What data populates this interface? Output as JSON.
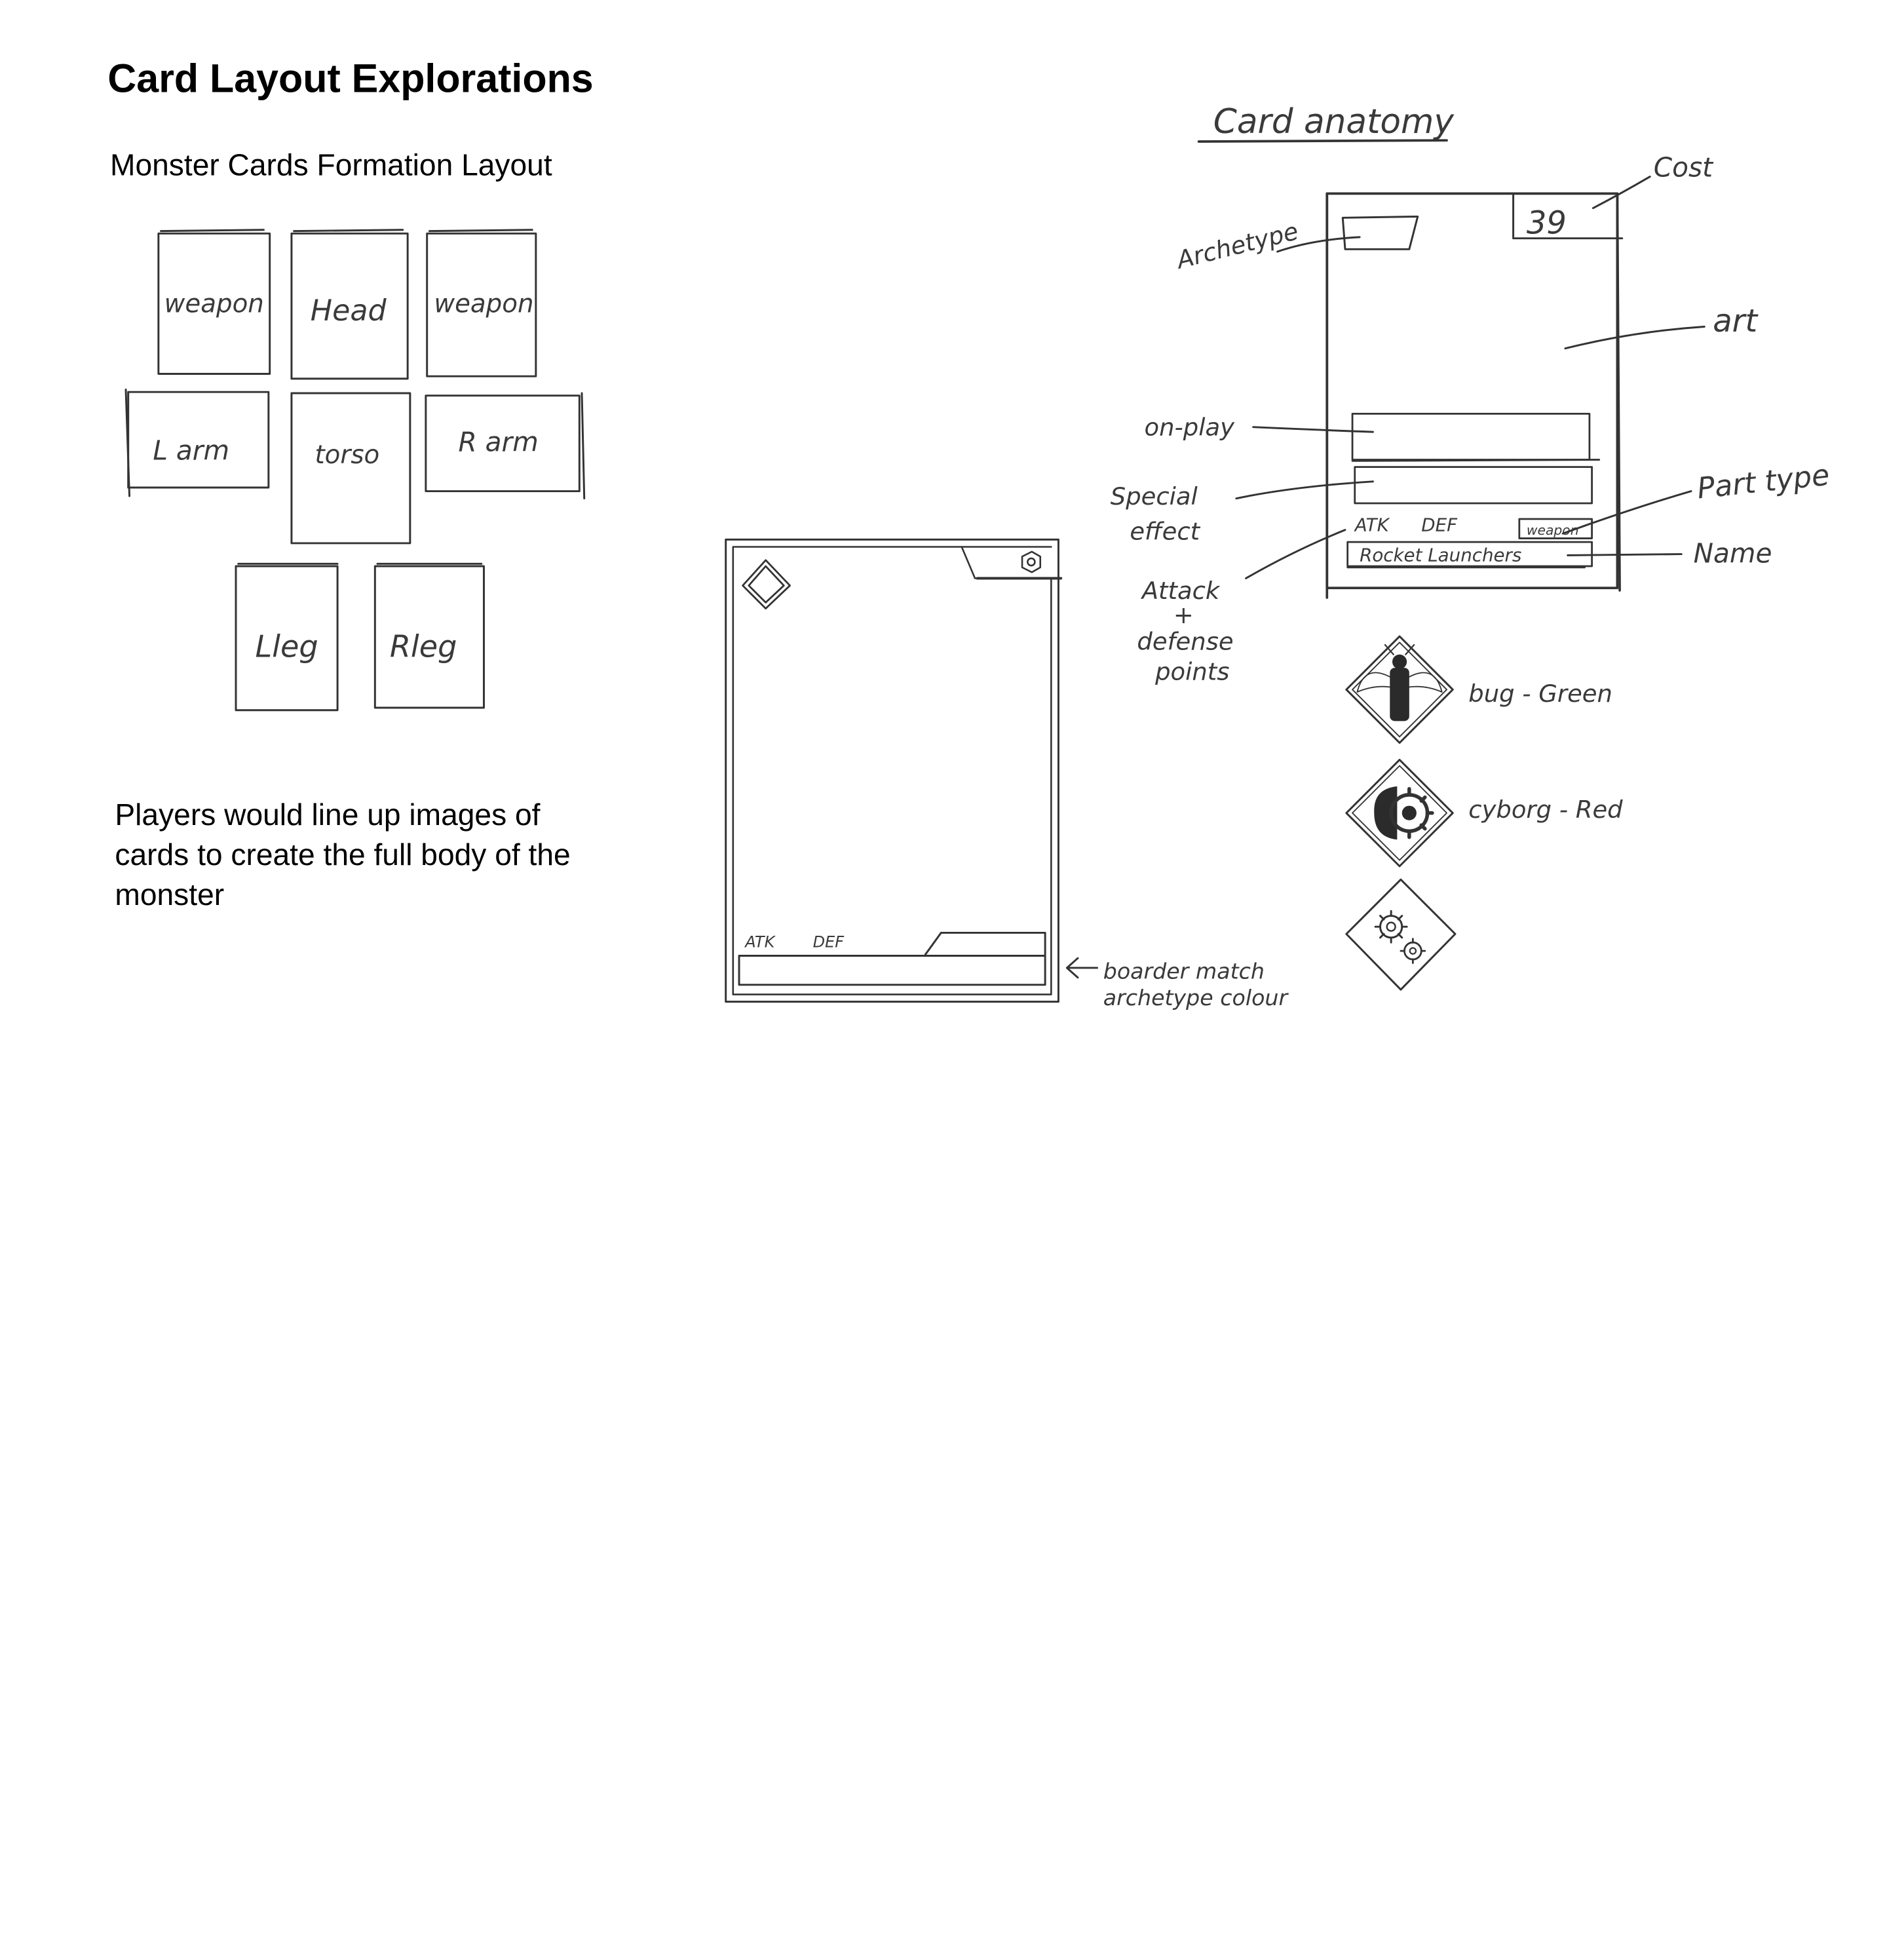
{
  "slide": {
    "title": "Card Layout Explorations",
    "subtitle": "Monster Cards Formation Layout",
    "caption": "Players would line up images of cards to create the full body of the monster"
  },
  "formation": {
    "slots": [
      {
        "label": "weapon"
      },
      {
        "label": "Head"
      },
      {
        "label": "weapon"
      },
      {
        "label": "L arm"
      },
      {
        "label": "torso"
      },
      {
        "label": "R arm"
      },
      {
        "label": "Lleg"
      },
      {
        "label": "Rleg"
      }
    ]
  },
  "blank_card": {
    "atk_label": "ATK",
    "def_label": "DEF",
    "note_line1": "boarder match",
    "note_line2": "archetype colour"
  },
  "anatomy": {
    "heading": "Card anatomy",
    "cost_value": "39",
    "atk_label": "ATK",
    "def_label": "DEF",
    "part_type_value": "weapon",
    "name_value": "Rocket Launchers",
    "callouts": {
      "cost": "Cost",
      "archetype": "Archetype",
      "art": "art",
      "on_play": "on-play",
      "special_1": "Special",
      "special_2": "effect",
      "atk_def_1": "Attack",
      "atk_def_2": "+",
      "atk_def_3": "defense",
      "atk_def_4": "points",
      "part_type": "Part type",
      "name": "Name"
    }
  },
  "archetypes": [
    {
      "label": "bug - Green",
      "icon": "bug-icon",
      "color": "#2e7d32"
    },
    {
      "label": "cyborg - Red",
      "icon": "cyborg-icon",
      "color": "#c62828"
    },
    {
      "label": "",
      "icon": "gears-icon",
      "color": "#555555"
    }
  ]
}
